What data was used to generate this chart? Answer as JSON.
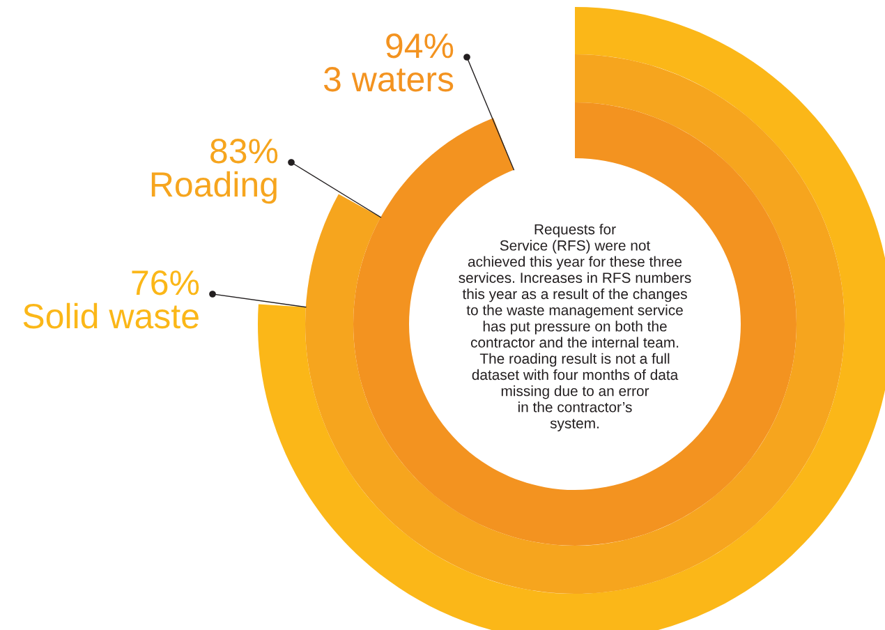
{
  "chart_data": {
    "type": "other",
    "categories": [
      "Solid waste",
      "Roading",
      "3 waters"
    ],
    "values": [
      76,
      83,
      94
    ],
    "value_labels": [
      "76%",
      "83%",
      "94%"
    ],
    "colors": [
      "#fbb718",
      "#f6a51e",
      "#f39320"
    ],
    "annotations": [
      "Requests for\nService (RFS) were not\nachieved this year for these three\nservices. Increases in RFS numbers\nthis year as a result of the changes\nto the waste management service\nhas put pressure on both the\ncontractor and the internal team.\nThe roading result is not a full\ndataset with four months of data\nmissing due to an error\nin the contractor’s\nsystem."
    ]
  }
}
